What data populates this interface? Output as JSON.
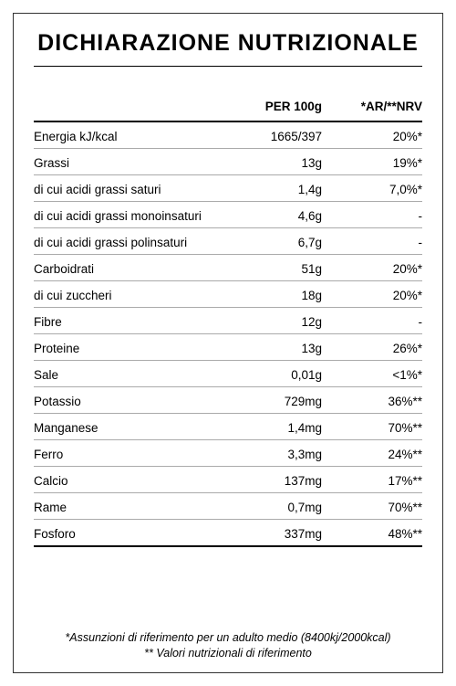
{
  "title": "DICHIARAZIONE NUTRIZIONALE",
  "columns": {
    "per": "PER 100g",
    "nrv": "*AR/**NRV"
  },
  "rows": [
    {
      "label": "Energia kJ/kcal",
      "value": "1665/397",
      "nrv": "20%*"
    },
    {
      "label": "Grassi",
      "value": "13g",
      "nrv": "19%*"
    },
    {
      "label": "di cui acidi grassi saturi",
      "value": "1,4g",
      "nrv": "7,0%*"
    },
    {
      "label": "di cui acidi grassi monoinsaturi",
      "value": "4,6g",
      "nrv": "-"
    },
    {
      "label": "di cui acidi grassi polinsaturi",
      "value": "6,7g",
      "nrv": "-"
    },
    {
      "label": "Carboidrati",
      "value": "51g",
      "nrv": "20%*"
    },
    {
      "label": "di cui zuccheri",
      "value": "18g",
      "nrv": "20%*"
    },
    {
      "label": "Fibre",
      "value": "12g",
      "nrv": "-"
    },
    {
      "label": "Proteine",
      "value": "13g",
      "nrv": "26%*"
    },
    {
      "label": "Sale",
      "value": "0,01g",
      "nrv": "<1%*"
    },
    {
      "label": "Potassio",
      "value": "729mg",
      "nrv": "36%**"
    },
    {
      "label": "Manganese",
      "value": "1,4mg",
      "nrv": "70%**"
    },
    {
      "label": "Ferro",
      "value": "3,3mg",
      "nrv": "24%**"
    },
    {
      "label": "Calcio",
      "value": "137mg",
      "nrv": "17%**"
    },
    {
      "label": "Rame",
      "value": "0,7mg",
      "nrv": "70%**"
    },
    {
      "label": "Fosforo",
      "value": "337mg",
      "nrv": "48%**"
    }
  ],
  "footnotes": {
    "line1": "*Assunzioni di riferimento per un adulto medio (8400kj/2000kcal)",
    "line2": "** Valori nutrizionali di riferimento"
  }
}
